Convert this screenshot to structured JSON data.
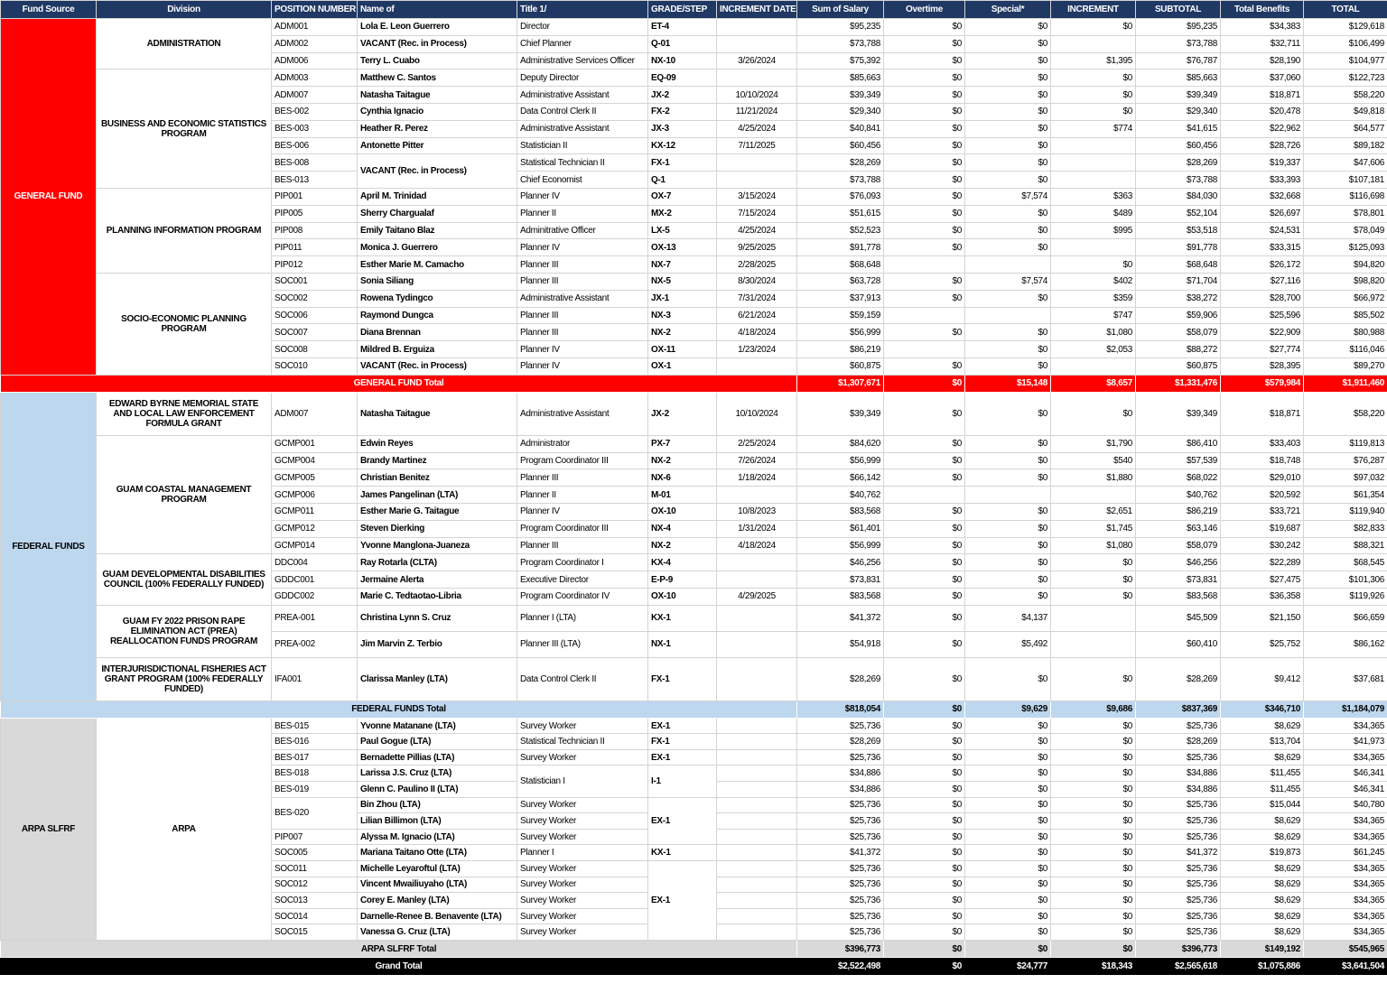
{
  "header": [
    "Fund Source",
    "Division",
    "POSITION NUMBER",
    "Name of",
    "Title 1/",
    "GRADE/STEP",
    "INCREMENT DATE",
    "Sum of Salary",
    "Overtime",
    "Special*",
    "INCREMENT",
    "SUBTOTAL",
    "Total Benefits",
    "TOTAL"
  ],
  "funds": [
    {
      "name": "GENERAL FUND",
      "divisions": [
        {
          "name": "ADMINISTRATION",
          "rows": [
            [
              "ADM001",
              "Lola E. Leon Guerrero",
              "Director",
              "ET-4",
              null,
              "$95,235",
              "$0",
              "$0",
              "$0",
              "$95,235",
              "$34,383",
              "$129,618"
            ],
            [
              "ADM002",
              "VACANT (Rec. in Process)",
              "Chief Planner",
              "Q-01",
              null,
              "$73,788",
              "$0",
              "$0",
              null,
              "$73,788",
              "$32,711",
              "$106,499"
            ],
            [
              "ADM006",
              "Terry L. Cuabo",
              "Administrative Services Officer",
              "NX-10",
              "3/26/2024",
              "$75,392",
              "$0",
              "$0",
              "$1,395",
              "$76,787",
              "$28,190",
              "$104,977"
            ]
          ]
        },
        {
          "name": "BUSINESS AND ECONOMIC STATISTICS PROGRAM",
          "rows": [
            [
              "ADM003",
              "Matthew C. Santos",
              "Deputy Director",
              "EQ-09",
              null,
              "$85,663",
              "$0",
              "$0",
              "$0",
              "$85,663",
              "$37,060",
              "$122,723"
            ],
            [
              "ADM007",
              "Natasha Taitague",
              "Administrative Assistant",
              "JX-2",
              "10/10/2024",
              "$39,349",
              "$0",
              "$0",
              "$0",
              "$39,349",
              "$18,871",
              "$58,220"
            ],
            [
              "BES-002",
              "Cynthia Ignacio",
              "Data Control Clerk II",
              "FX-2",
              "11/21/2024",
              "$29,340",
              "$0",
              "$0",
              "$0",
              "$29,340",
              "$20,478",
              "$49,818"
            ],
            [
              "BES-003",
              "Heather R. Perez",
              "Administrative Assistant",
              "JX-3",
              "4/25/2024",
              "$40,841",
              "$0",
              "$0",
              "$774",
              "$41,615",
              "$22,962",
              "$64,577"
            ],
            [
              "BES-006",
              "Antonette Pitter",
              "Statistician II",
              "KX-12",
              "7/11/2025",
              "$60,456",
              "$0",
              "$0",
              null,
              "$60,456",
              "$28,726",
              "$89,182"
            ],
            [
              "BES-008",
              "VACANT (Rec. in Process)",
              "Statistical Technician II",
              "FX-1",
              null,
              "$28,269",
              "$0",
              "$0",
              null,
              "$28,269",
              "$19,337",
              "$47,606"
            ],
            [
              "BES-013",
              null,
              "Chief Economist",
              "Q-1",
              null,
              "$73,788",
              "$0",
              "$0",
              null,
              "$73,788",
              "$33,393",
              "$107,181"
            ]
          ]
        },
        {
          "name": "PLANNING INFORMATION PROGRAM",
          "rows": [
            [
              "PIP001",
              "April M. Trinidad",
              "Planner IV",
              "OX-7",
              "3/15/2024",
              "$76,093",
              "$0",
              "$7,574",
              "$363",
              "$84,030",
              "$32,668",
              "$116,698"
            ],
            [
              "PIP005",
              "Sherry Chargualaf",
              "Planner II",
              "MX-2",
              "7/15/2024",
              "$51,615",
              "$0",
              "$0",
              "$489",
              "$52,104",
              "$26,697",
              "$78,801"
            ],
            [
              "PIP008",
              "Emily Taitano Blaz",
              "Adminitrative Officer",
              "LX-5",
              "4/25/2024",
              "$52,523",
              "$0",
              "$0",
              "$995",
              "$53,518",
              "$24,531",
              "$78,049"
            ],
            [
              "PIP011",
              "Monica J. Guerrero",
              "Planner IV",
              "OX-13",
              "9/25/2025",
              "$91,778",
              "$0",
              "$0",
              null,
              "$91,778",
              "$33,315",
              "$125,093"
            ],
            [
              "PIP012",
              "Esther Marie M. Camacho",
              "Planner III",
              "NX-7",
              "2/28/2025",
              "$68,648",
              null,
              null,
              "$0",
              "$68,648",
              "$26,172",
              "$94,820"
            ]
          ]
        },
        {
          "name": "SOCIO-ECONOMIC PLANNING  PROGRAM",
          "rows": [
            [
              "SOC001",
              "Sonia Siliang",
              "Planner III",
              "NX-5",
              "8/30/2024",
              "$63,728",
              "$0",
              "$7,574",
              "$402",
              "$71,704",
              "$27,116",
              "$98,820"
            ],
            [
              "SOC002",
              "Rowena Tydingco",
              "Administrative Assistant",
              "JX-1",
              "7/31/2024",
              "$37,913",
              "$0",
              "$0",
              "$359",
              "$38,272",
              "$28,700",
              "$66,972"
            ],
            [
              "SOC006",
              "Raymond Dungca",
              "Planner III",
              "NX-3",
              "6/21/2024",
              "$59,159",
              null,
              null,
              "$747",
              "$59,906",
              "$25,596",
              "$85,502"
            ],
            [
              "SOC007",
              "Diana Brennan",
              "Planner III",
              "NX-2",
              "4/18/2024",
              "$56,999",
              "$0",
              "$0",
              "$1,080",
              "$58,079",
              "$22,909",
              "$80,988"
            ],
            [
              "SOC008",
              "Mildred B. Erguiza",
              "Planner IV",
              "OX-11",
              "1/23/2024",
              "$86,219",
              null,
              "$0",
              "$2,053",
              "$88,272",
              "$27,774",
              "$116,046"
            ],
            [
              "SOC010",
              "VACANT (Rec. in Process)",
              "Planner IV",
              "OX-1",
              null,
              "$60,875",
              "$0",
              "$0",
              null,
              "$60,875",
              "$28,395",
              "$89,270"
            ]
          ]
        }
      ],
      "total": {
        "label": "GENERAL FUND Total",
        "values": [
          "$1,307,671",
          "$0",
          "$15,148",
          "$8,657",
          "$1,331,476",
          "$579,984",
          "$1,911,460"
        ]
      }
    },
    {
      "name": "FEDERAL FUNDS",
      "divisions": [
        {
          "name": "EDWARD BYRNE MEMORIAL STATE AND LOCAL LAW ENFORCEMENT FORMULA GRANT",
          "rows": [
            [
              "ADM007",
              "Natasha Taitague",
              "Administrative Assistant",
              "JX-2",
              "10/10/2024",
              "$39,349",
              "$0",
              "$0",
              "$0",
              "$39,349",
              "$18,871",
              "$58,220"
            ]
          ]
        },
        {
          "name": "GUAM COASTAL MANAGEMENT PROGRAM",
          "rows": [
            [
              "GCMP001",
              "Edwin Reyes",
              "Administrator",
              "PX-7",
              "2/25/2024",
              "$84,620",
              "$0",
              "$0",
              "$1,790",
              "$86,410",
              "$33,403",
              "$119,813"
            ],
            [
              "GCMP004",
              "Brandy Martinez",
              "Program Coordinator III",
              "NX-2",
              "7/26/2024",
              "$56,999",
              "$0",
              "$0",
              "$540",
              "$57,539",
              "$18,748",
              "$76,287"
            ],
            [
              "GCMP005",
              "Christian Benitez",
              "Planner III",
              "NX-6",
              "1/18/2024",
              "$66,142",
              "$0",
              "$0",
              "$1,880",
              "$68,022",
              "$29,010",
              "$97,032"
            ],
            [
              "GCMP006",
              "James Pangelinan (LTA)",
              "Planner II",
              "M-01",
              null,
              "$40,762",
              null,
              null,
              null,
              "$40,762",
              "$20,592",
              "$61,354"
            ],
            [
              "GCMP011",
              "Esther Marie G. Taitague",
              "Planner IV",
              "OX-10",
              "10/8/2023",
              "$83,568",
              "$0",
              "$0",
              "$2,651",
              "$86,219",
              "$33,721",
              "$119,940"
            ],
            [
              "GCMP012",
              "Steven Dierking",
              "Program Coordinator III",
              "NX-4",
              "1/31/2024",
              "$61,401",
              "$0",
              "$0",
              "$1,745",
              "$63,146",
              "$19,687",
              "$82,833"
            ],
            [
              "GCMP014",
              "Yvonne Manglona-Juaneza",
              "Planner III",
              "NX-2",
              "4/18/2024",
              "$56,999",
              "$0",
              "$0",
              "$1,080",
              "$58,079",
              "$30,242",
              "$88,321"
            ]
          ]
        },
        {
          "name": "GUAM DEVELOPMENTAL DISABILITIES COUNCIL (100% FEDERALLY FUNDED)",
          "rows": [
            [
              "DDC004",
              "Ray Rotarla (CLTA)",
              "Program Coordinator I",
              "KX-4",
              null,
              "$46,256",
              "$0",
              "$0",
              "$0",
              "$46,256",
              "$22,289",
              "$68,545"
            ],
            [
              "GDDC001",
              "Jermaine Alerta",
              "Executive Director",
              "E-P-9",
              null,
              "$73,831",
              "$0",
              "$0",
              "$0",
              "$73,831",
              "$27,475",
              "$101,306"
            ],
            [
              "GDDC002",
              "Marie C. Tedtaotao-Libria",
              "Program Coordinator IV",
              "OX-10",
              "4/29/2025",
              "$83,568",
              "$0",
              "$0",
              "$0",
              "$83,568",
              "$36,358",
              "$119,926"
            ]
          ]
        },
        {
          "name": "GUAM FY 2022 PRISON RAPE ELIMINATION ACT (PREA) REALLOCATION FUNDS PROGRAM",
          "rows": [
            [
              "PREA-001",
              "Christina Lynn S. Cruz",
              "Planner I (LTA)",
              "KX-1",
              null,
              "$41,372",
              "$0",
              "$4,137",
              null,
              "$45,509",
              "$21,150",
              "$66,659"
            ],
            [
              "PREA-002",
              "Jim Marvin Z. Terbio",
              "Planner III (LTA)",
              "NX-1",
              null,
              "$54,918",
              "$0",
              "$5,492",
              null,
              "$60,410",
              "$25,752",
              "$86,162"
            ]
          ]
        },
        {
          "name": "INTERJURISDICTIONAL FISHERIES ACT GRANT PROGRAM (100% FEDERALLY FUNDED)",
          "rows": [
            [
              "IFA001",
              "Clarissa Manley (LTA)",
              "Data Control Clerk II",
              "FX-1",
              null,
              "$28,269",
              "$0",
              "$0",
              "$0",
              "$28,269",
              "$9,412",
              "$37,681"
            ]
          ]
        }
      ],
      "total": {
        "label": "FEDERAL FUNDS Total",
        "values": [
          "$818,054",
          "$0",
          "$9,629",
          "$9,686",
          "$837,369",
          "$346,710",
          "$1,184,079"
        ]
      }
    },
    {
      "name": "ARPA SLFRF",
      "divisions": [
        {
          "name": "ARPA",
          "rows": [
            [
              "BES-015",
              "Yvonne Matanane (LTA)",
              "Survey Worker",
              "EX-1",
              null,
              "$25,736",
              "$0",
              "$0",
              "$0",
              "$25,736",
              "$8,629",
              "$34,365"
            ],
            [
              "BES-016",
              "Paul Gogue (LTA)",
              "Statistical Technician II",
              "FX-1",
              null,
              "$28,269",
              "$0",
              "$0",
              "$0",
              "$28,269",
              "$13,704",
              "$41,973"
            ],
            [
              "BES-017",
              "Bernadette Pillias (LTA)",
              "Survey Worker",
              "EX-1",
              null,
              "$25,736",
              "$0",
              "$0",
              "$0",
              "$25,736",
              "$8,629",
              "$34,365"
            ],
            [
              "BES-018",
              "Larissa J.S. Cruz (LTA)",
              "Statistician I",
              "I-1",
              null,
              "$34,886",
              "$0",
              "$0",
              "$0",
              "$34,886",
              "$11,455",
              "$46,341"
            ],
            [
              "BES-019",
              "Glenn C. Paulino II (LTA)",
              null,
              null,
              null,
              "$34,886",
              "$0",
              "$0",
              "$0",
              "$34,886",
              "$11,455",
              "$46,341"
            ],
            [
              "BES-020",
              "Bin Zhou (LTA)",
              "Survey Worker",
              "EX-1",
              null,
              "$25,736",
              "$0",
              "$0",
              "$0",
              "$25,736",
              "$15,044",
              "$40,780"
            ],
            [
              null,
              "Lilian Billimon (LTA)",
              "Survey Worker",
              null,
              null,
              "$25,736",
              "$0",
              "$0",
              "$0",
              "$25,736",
              "$8,629",
              "$34,365"
            ],
            [
              "PIP007",
              "Alyssa M. Ignacio (LTA)",
              "Survey Worker",
              null,
              null,
              "$25,736",
              "$0",
              "$0",
              "$0",
              "$25,736",
              "$8,629",
              "$34,365"
            ],
            [
              "SOC005",
              "Mariana Taitano Otte (LTA)",
              "Planner I",
              "KX-1",
              null,
              "$41,372",
              "$0",
              "$0",
              "$0",
              "$41,372",
              "$19,873",
              "$61,245"
            ],
            [
              "SOC011",
              "Michelle Leyaroftul (LTA)",
              "Survey Worker",
              "EX-1",
              null,
              "$25,736",
              "$0",
              "$0",
              "$0",
              "$25,736",
              "$8,629",
              "$34,365"
            ],
            [
              "SOC012",
              "Vincent Mwailiuyaho (LTA)",
              "Survey Worker",
              null,
              null,
              "$25,736",
              "$0",
              "$0",
              "$0",
              "$25,736",
              "$8,629",
              "$34,365"
            ],
            [
              "SOC013",
              "Corey E. Manley (LTA)",
              "Survey Worker",
              null,
              null,
              "$25,736",
              "$0",
              "$0",
              "$0",
              "$25,736",
              "$8,629",
              "$34,365"
            ],
            [
              "SOC014",
              "Darnelle-Renee B. Benavente (LTA)",
              "Survey Worker",
              null,
              null,
              "$25,736",
              "$0",
              "$0",
              "$0",
              "$25,736",
              "$8,629",
              "$34,365"
            ],
            [
              "SOC015",
              "Vanessa G. Cruz (LTA)",
              "Survey Worker",
              null,
              null,
              "$25,736",
              "$0",
              "$0",
              "$0",
              "$25,736",
              "$8,629",
              "$34,365"
            ]
          ]
        }
      ],
      "total": {
        "label": "ARPA SLFRF Total",
        "values": [
          "$396,773",
          "$0",
          "$0",
          "$0",
          "$396,773",
          "$149,192",
          "$545,965"
        ]
      }
    }
  ],
  "grand_total": {
    "label": "Grand Total",
    "values": [
      "$2,522,498",
      "$0",
      "$24,777",
      "$18,343",
      "$2,565,618",
      "$1,075,886",
      "$3,641,504"
    ]
  }
}
